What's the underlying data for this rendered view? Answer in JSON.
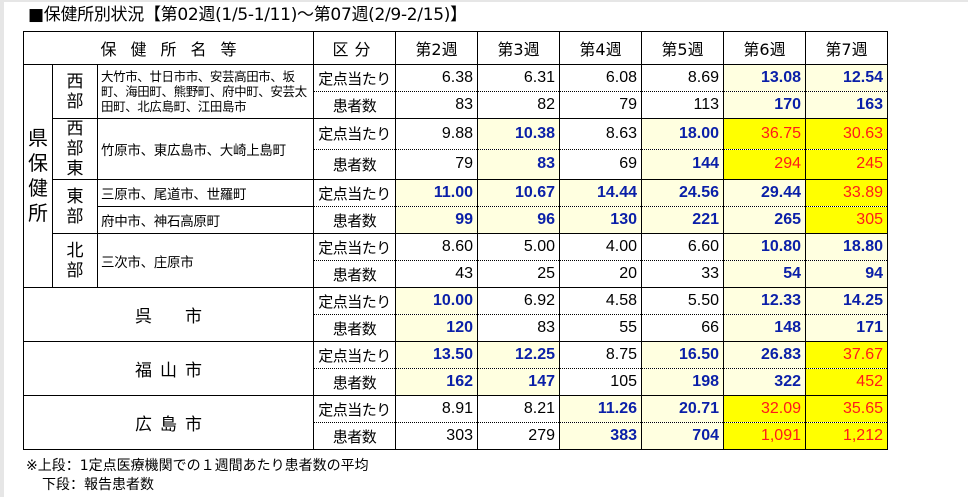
{
  "title": "■保健所別状況【第02週(1/5-1/11)～第07週(2/9-2/15)】",
  "header": {
    "name_col": "保健所名等",
    "kubun_col": "区分",
    "weeks": [
      "第2週",
      "第3週",
      "第4週",
      "第5週",
      "第6週",
      "第7週"
    ]
  },
  "labels": {
    "per_sentinel": "定点当たり",
    "patients": "患者数",
    "prefectural": "県保健所"
  },
  "groups": [
    {
      "bu": "西部",
      "towns": "大竹市、廿日市市、安芸高田市、坂町、海田町、熊野町、府中町、安芸太田町、北広島町、江田島市",
      "rate": [
        "6.38",
        "6.31",
        "6.08",
        "8.69",
        "13.08",
        "12.54"
      ],
      "rate_style": [
        "w",
        "w",
        "w",
        "w",
        "ly",
        "ly"
      ],
      "count": [
        "83",
        "82",
        "79",
        "113",
        "170",
        "163"
      ],
      "count_style": [
        "w",
        "w",
        "w",
        "w",
        "ly",
        "ly"
      ]
    },
    {
      "bu": "西部東",
      "towns": "竹原市、東広島市、大崎上島町",
      "rate": [
        "9.88",
        "10.38",
        "8.63",
        "18.00",
        "36.75",
        "30.63"
      ],
      "rate_style": [
        "w",
        "ly",
        "w",
        "ly",
        "yy",
        "yy"
      ],
      "count": [
        "79",
        "83",
        "69",
        "144",
        "294",
        "245"
      ],
      "count_style": [
        "w",
        "ly",
        "w",
        "ly",
        "yy",
        "yy"
      ]
    },
    {
      "bu": "東部",
      "towns_upper": "三原市、尾道市、世羅町",
      "towns_lower": "府中市、神石高原町",
      "rate": [
        "11.00",
        "10.67",
        "14.44",
        "24.56",
        "29.44",
        "33.89"
      ],
      "rate_style": [
        "ly",
        "ly",
        "ly",
        "ly",
        "ly",
        "yy"
      ],
      "count": [
        "99",
        "96",
        "130",
        "221",
        "265",
        "305"
      ],
      "count_style": [
        "ly",
        "ly",
        "ly",
        "ly",
        "ly",
        "yy"
      ]
    },
    {
      "bu": "北部",
      "towns": "三次市、庄原市",
      "rate": [
        "8.60",
        "5.00",
        "4.00",
        "6.60",
        "10.80",
        "18.80"
      ],
      "rate_style": [
        "w",
        "w",
        "w",
        "w",
        "ly",
        "ly"
      ],
      "count": [
        "43",
        "25",
        "20",
        "33",
        "54",
        "94"
      ],
      "count_style": [
        "w",
        "w",
        "w",
        "w",
        "ly",
        "ly"
      ]
    }
  ],
  "cities": [
    {
      "name": "呉　市",
      "rate": [
        "10.00",
        "6.92",
        "4.58",
        "5.50",
        "12.33",
        "14.25"
      ],
      "rate_style": [
        "ly",
        "w",
        "w",
        "w",
        "ly",
        "ly"
      ],
      "count": [
        "120",
        "83",
        "55",
        "66",
        "148",
        "171"
      ],
      "count_style": [
        "ly",
        "w",
        "w",
        "w",
        "ly",
        "ly"
      ]
    },
    {
      "name": "福山市",
      "rate": [
        "13.50",
        "12.25",
        "8.75",
        "16.50",
        "26.83",
        "37.67"
      ],
      "rate_style": [
        "ly",
        "ly",
        "w",
        "ly",
        "ly",
        "yy"
      ],
      "count": [
        "162",
        "147",
        "105",
        "198",
        "322",
        "452"
      ],
      "count_style": [
        "ly",
        "ly",
        "w",
        "ly",
        "ly",
        "yy"
      ]
    },
    {
      "name": "広島市",
      "rate": [
        "8.91",
        "8.21",
        "11.26",
        "20.71",
        "32.09",
        "35.65"
      ],
      "rate_style": [
        "w",
        "w",
        "ly",
        "ly",
        "yy",
        "yy"
      ],
      "count": [
        "303",
        "279",
        "383",
        "704",
        "1,091",
        "1,212"
      ],
      "count_style": [
        "w",
        "w",
        "ly",
        "ly",
        "yy",
        "yy"
      ]
    }
  ],
  "notes": {
    "line1": "※上段：1定点医療機関での１週間あたり患者数の平均",
    "line2": "下段：報告患者数"
  },
  "colors": {
    "plain_bg": "#ffffff",
    "elevated_bg": "#ffffe0",
    "elevated_text": "#0a1fa8",
    "alert_bg": "#ffff00",
    "alert_text": "#ff1a1a"
  }
}
